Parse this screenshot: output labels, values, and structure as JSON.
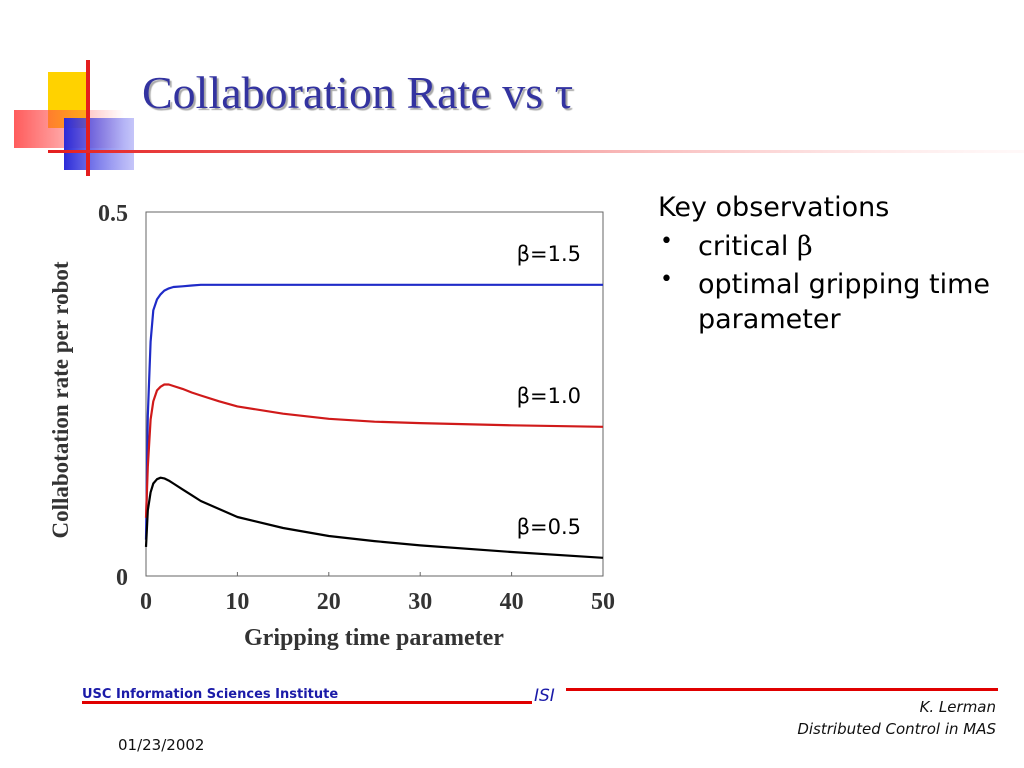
{
  "slide": {
    "title": "Collaboration Rate vs τ"
  },
  "observations": {
    "heading": "Key observations",
    "items": [
      {
        "prefix": "critical ",
        "symbol": "β"
      },
      {
        "prefix": "optimal gripping time parameter",
        "symbol": ""
      }
    ]
  },
  "footer": {
    "institute": "USC Information Sciences Institute",
    "isi": "ISI",
    "author": "K. Lerman",
    "course": "Distributed Control in MAS",
    "date": "01/23/2002"
  },
  "colors": {
    "title": "#3333a0",
    "footer_blue": "#1a1aa8",
    "footer_red": "#e00000",
    "series_blue": "#1f2bc8",
    "series_red": "#d01a1a",
    "series_black": "#000000"
  },
  "chart_data": {
    "type": "line",
    "title": "",
    "xlabel": "Gripping time parameter",
    "ylabel": "Collabotation rate per robot",
    "xlim": [
      0,
      50
    ],
    "ylim": [
      0,
      0.5
    ],
    "xticks": [
      "0",
      "10",
      "20",
      "30",
      "40",
      "50"
    ],
    "yticks": [
      {
        "value": 0,
        "label": "0"
      },
      {
        "value": 0.5,
        "label": "0.5"
      }
    ],
    "grid": false,
    "series": [
      {
        "name": "β=1.5",
        "color": "#1f2bc8",
        "x": [
          0,
          0.2,
          0.5,
          0.8,
          1.2,
          1.6,
          2.0,
          2.5,
          3.0,
          4.0,
          5.0,
          6.0,
          8.0,
          10,
          15,
          20,
          30,
          40,
          50
        ],
        "y": [
          0.05,
          0.22,
          0.322,
          0.365,
          0.38,
          0.387,
          0.392,
          0.395,
          0.397,
          0.398,
          0.399,
          0.4,
          0.4,
          0.4,
          0.4,
          0.4,
          0.4,
          0.4,
          0.4
        ]
      },
      {
        "name": "β=1.0",
        "color": "#d01a1a",
        "x": [
          0,
          0.2,
          0.5,
          0.8,
          1.2,
          1.6,
          2.0,
          2.5,
          3.0,
          4.0,
          5.0,
          6.0,
          8.0,
          10,
          15,
          20,
          25,
          30,
          40,
          50
        ],
        "y": [
          0.08,
          0.15,
          0.215,
          0.24,
          0.255,
          0.26,
          0.263,
          0.263,
          0.261,
          0.257,
          0.252,
          0.248,
          0.24,
          0.233,
          0.223,
          0.216,
          0.212,
          0.21,
          0.207,
          0.205
        ]
      },
      {
        "name": "β=0.5",
        "color": "#000000",
        "x": [
          0,
          0.2,
          0.5,
          0.8,
          1.2,
          1.6,
          2.0,
          2.5,
          3.0,
          4.0,
          5.0,
          6.0,
          8.0,
          10,
          15,
          20,
          25,
          30,
          40,
          50
        ],
        "y": [
          0.04,
          0.09,
          0.115,
          0.127,
          0.133,
          0.135,
          0.134,
          0.131,
          0.127,
          0.119,
          0.111,
          0.103,
          0.092,
          0.081,
          0.066,
          0.055,
          0.048,
          0.042,
          0.033,
          0.025
        ]
      }
    ]
  }
}
